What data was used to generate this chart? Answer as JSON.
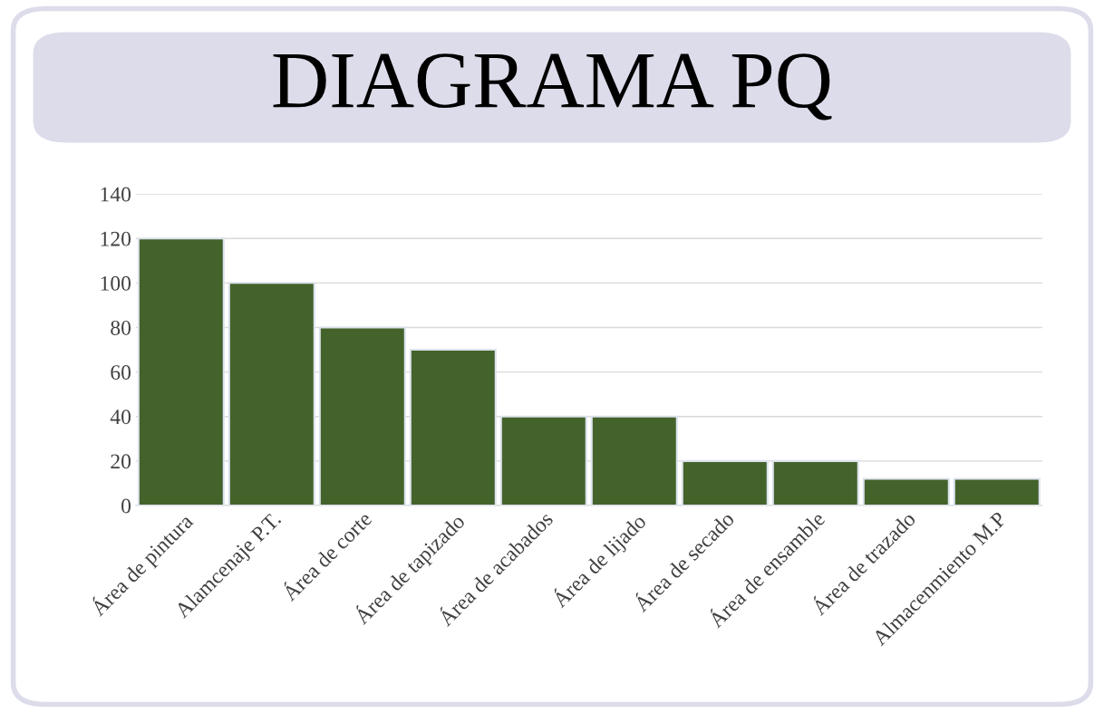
{
  "chart_data": {
    "type": "bar",
    "title": "DIAGRAMA PQ",
    "categories": [
      "Área de pintura",
      "Alamcenaje P.T.",
      "Área de corte",
      "Área de tapizado",
      "Área de acabados",
      "Área de lijado",
      "Área de secado",
      "Área de ensamble",
      "Área de trazado",
      "Almacenmiento M.P"
    ],
    "values": [
      120,
      100,
      80,
      70,
      40,
      40,
      20,
      20,
      12,
      12
    ],
    "color": "#44632b",
    "ylim": [
      0,
      140
    ],
    "yticks": [
      0,
      20,
      40,
      60,
      80,
      100,
      120,
      140
    ],
    "grid": "y",
    "legend": false
  }
}
